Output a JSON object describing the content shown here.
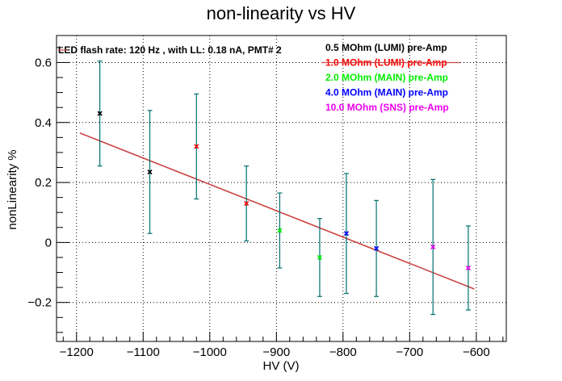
{
  "chart_data": {
    "type": "scatter",
    "title": "non-linearity vs HV",
    "xlabel": "HV (V)",
    "ylabel": "nonLinearity %",
    "xlim": [
      -1230,
      -555
    ],
    "ylim": [
      -0.33,
      0.69
    ],
    "x_ticks": [
      -1200,
      -1100,
      -1000,
      -900,
      -800,
      -700,
      -600
    ],
    "y_ticks": [
      -0.2,
      0,
      0.2,
      0.4,
      0.6
    ],
    "x_tick_labels": [
      "−1200",
      "−1100",
      "−1000",
      "−900",
      "−800",
      "−700",
      "−600"
    ],
    "y_tick_labels": [
      "−0.2",
      "0",
      "0.2",
      "0.4",
      "0.6"
    ],
    "grid": true,
    "annotation": "LED flash rate: 120 Hz , with LL: 0.18 nA, PMT# 2",
    "legend_position": "top-right",
    "error_bar_color": "#007070",
    "series": [
      {
        "name": "0.5 MOhm (LUMI) pre-Amp",
        "color": "#000000",
        "x": [
          -1165,
          -1090
        ],
        "y": [
          0.43,
          0.235
        ],
        "err": [
          0.175,
          0.205
        ]
      },
      {
        "name": "1.0 MOhm (LUMI) pre-Amp",
        "color": "#ff0000",
        "x": [
          -1020,
          -945
        ],
        "y": [
          0.32,
          0.13
        ],
        "err": [
          0.175,
          0.125
        ]
      },
      {
        "name": "2.0 MOhm (MAIN) pre-Amp",
        "color": "#00ee00",
        "x": [
          -895,
          -835
        ],
        "y": [
          0.04,
          -0.05
        ],
        "err": [
          0.125,
          0.13
        ]
      },
      {
        "name": "4.0 MOhm (MAIN) pre-Amp",
        "color": "#0000ff",
        "x": [
          -795,
          -750
        ],
        "y": [
          0.03,
          -0.02
        ],
        "err": [
          0.2,
          0.16
        ]
      },
      {
        "name": "10.0 MOhm (SNS) pre-Amp",
        "color": "#ee00ee",
        "x": [
          -665,
          -612
        ],
        "y": [
          -0.015,
          -0.085
        ],
        "err": [
          0.225,
          0.14
        ]
      }
    ],
    "fit_line": {
      "color": "#cc4444",
      "x": [
        -1195,
        -603
      ],
      "y": [
        0.365,
        -0.155
      ]
    }
  }
}
